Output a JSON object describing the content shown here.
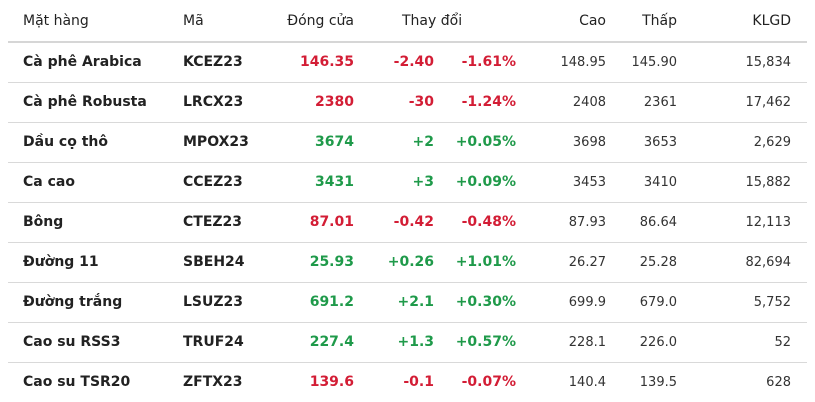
{
  "colors": {
    "down": "#d31d35",
    "up": "#1f9a4a"
  },
  "headers": {
    "name": "Mặt hàng",
    "code": "Mã",
    "close": "Đóng cửa",
    "change": "Thay đổi",
    "high": "Cao",
    "low": "Thấp",
    "volume": "KLGD"
  },
  "rows": [
    {
      "name": "Cà phê Arabica",
      "code": "KCEZ23",
      "close": "146.35",
      "change": "-2.40",
      "pct": "-1.61%",
      "high": "148.95",
      "low": "145.90",
      "volume": "15,834",
      "dir": "down"
    },
    {
      "name": "Cà phê Robusta",
      "code": "LRCX23",
      "close": "2380",
      "change": "-30",
      "pct": "-1.24%",
      "high": "2408",
      "low": "2361",
      "volume": "17,462",
      "dir": "down"
    },
    {
      "name": "Dầu cọ thô",
      "code": "MPOX23",
      "close": "3674",
      "change": "+2",
      "pct": "+0.05%",
      "high": "3698",
      "low": "3653",
      "volume": "2,629",
      "dir": "up"
    },
    {
      "name": "Ca cao",
      "code": "CCEZ23",
      "close": "3431",
      "change": "+3",
      "pct": "+0.09%",
      "high": "3453",
      "low": "3410",
      "volume": "15,882",
      "dir": "up"
    },
    {
      "name": "Bông",
      "code": "CTEZ23",
      "close": "87.01",
      "change": "-0.42",
      "pct": "-0.48%",
      "high": "87.93",
      "low": "86.64",
      "volume": "12,113",
      "dir": "down"
    },
    {
      "name": "Đường 11",
      "code": "SBEH24",
      "close": "25.93",
      "change": "+0.26",
      "pct": "+1.01%",
      "high": "26.27",
      "low": "25.28",
      "volume": "82,694",
      "dir": "up"
    },
    {
      "name": "Đường trắng",
      "code": "LSUZ23",
      "close": "691.2",
      "change": "+2.1",
      "pct": "+0.30%",
      "high": "699.9",
      "low": "679.0",
      "volume": "5,752",
      "dir": "up"
    },
    {
      "name": "Cao su RSS3",
      "code": "TRUF24",
      "close": "227.4",
      "change": "+1.3",
      "pct": "+0.57%",
      "high": "228.1",
      "low": "226.0",
      "volume": "52",
      "dir": "up"
    },
    {
      "name": "Cao su TSR20",
      "code": "ZFTX23",
      "close": "139.6",
      "change": "-0.1",
      "pct": "-0.07%",
      "high": "140.4",
      "low": "139.5",
      "volume": "628",
      "dir": "down"
    }
  ]
}
